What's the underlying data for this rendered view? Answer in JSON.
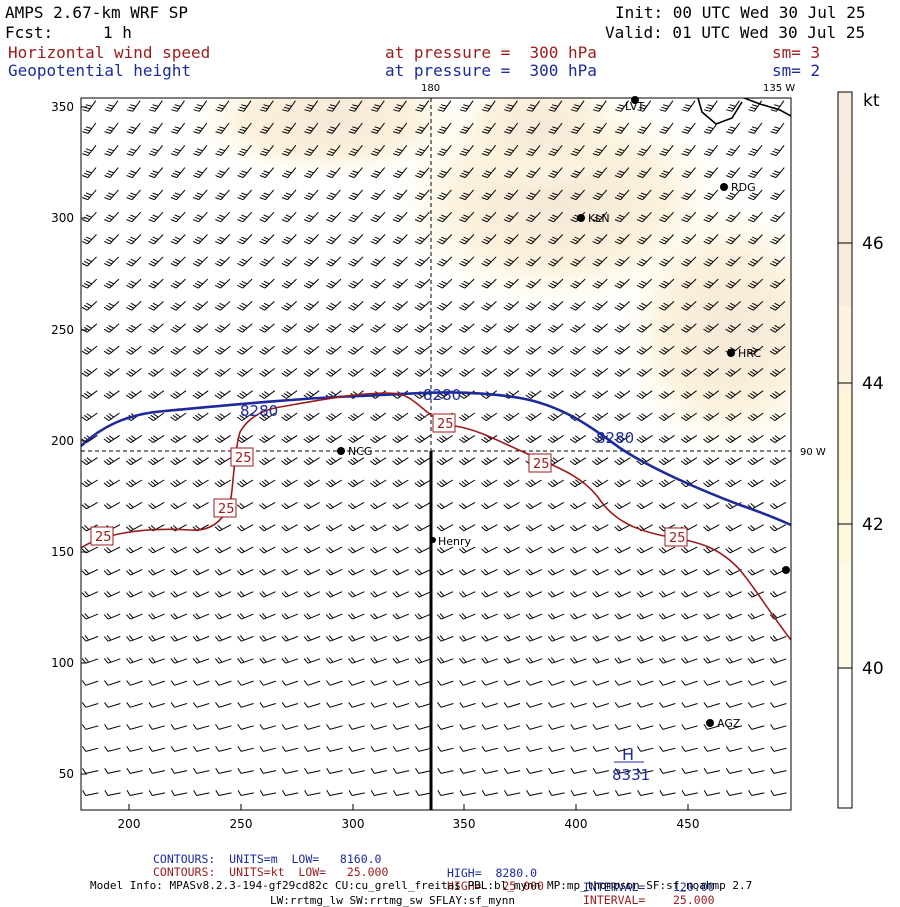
{
  "header": {
    "model": "AMPS 2.67-km WRF SP",
    "fcst_label": "Fcst:",
    "fcst_value": "1 h",
    "init": "Init: 00 UTC Wed 30 Jul 25",
    "valid": "Valid: 01 UTC Wed 30 Jul 25",
    "field1": "Horizontal wind speed",
    "field1_level": "at pressure =  300 hPa",
    "field1_sm": "sm= 3",
    "field2": "Geopotential height",
    "field2_level": "at pressure =  300 hPa",
    "field2_sm": "sm= 2"
  },
  "map": {
    "meridian_180": "180",
    "meridian_135w": "135 W",
    "parallel_90w": "90 W",
    "x_ticks": [
      "200",
      "250",
      "300",
      "350",
      "400",
      "450"
    ],
    "y_ticks": [
      "350",
      "300",
      "250",
      "200",
      "150",
      "100",
      "50"
    ],
    "stations": [
      {
        "name": "LVT"
      },
      {
        "name": "RDG"
      },
      {
        "name": "KLN"
      },
      {
        "name": "HRC"
      },
      {
        "name": "NCG"
      },
      {
        "name": "Henry"
      },
      {
        "name": "AGZ"
      }
    ],
    "contour_labels": {
      "height_8280": "8280",
      "wind_25": "25"
    },
    "high": {
      "letter": "H",
      "value": "8331"
    },
    "colors": {
      "height": "#1c2a9c",
      "wind": "#9b1b1b",
      "barb": "#000000"
    }
  },
  "colorbar": {
    "unit": "kt",
    "labels": [
      "46",
      "44",
      "42",
      "40"
    ],
    "colors": [
      "#fff7ee",
      "#f7eadb",
      "#fbf3da",
      "#fdf6d2",
      "#fefbe6",
      "#ffffff"
    ]
  },
  "footer": {
    "line1_a": "CONTOURS:  UNITS=m  LOW=   8160.0",
    "line1_b": "HIGH=  8280.0",
    "line1_c": "INTERVAL=    120.00",
    "line2_a": "CONTOURS:  UNITS=kt  LOW=   25.000",
    "line2_b": "HIGH=   25.000",
    "line2_c": "INTERVAL=    25.000",
    "model_info": "Model Info: MPASv8.2.3-194-gf29cd82c CU:cu_grell_freitas PBL:bl_mynn MP:mp_thompson SF:sf_noahmp 2.7",
    "model_info2": "LW:rrtmg_lw SW:rrtmg_sw SFLAY:sf_mynn"
  }
}
